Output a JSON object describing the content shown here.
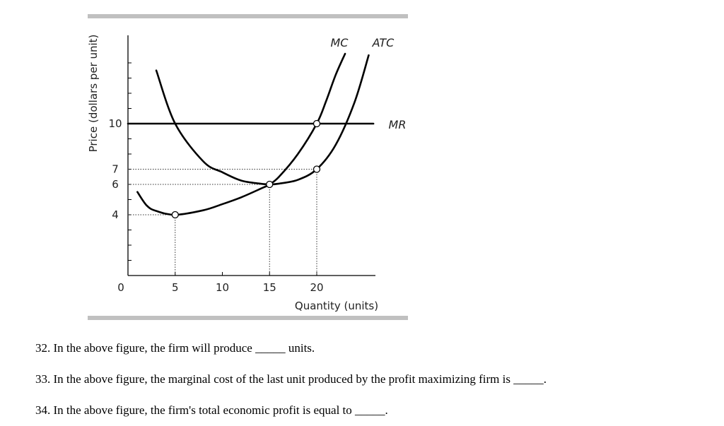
{
  "chart_data": {
    "type": "line",
    "xlabel": "Quantity (units)",
    "ylabel": "Price (dollars per unit)",
    "xlim": [
      0,
      26
    ],
    "ylim": [
      0,
      15
    ],
    "x_ticks": [
      0,
      5,
      10,
      15,
      20
    ],
    "y_ticks": [
      4,
      6,
      7,
      10
    ],
    "series": [
      {
        "name": "MC",
        "x": [
          1,
          2,
          3,
          5,
          8,
          10,
          12,
          14,
          15,
          16,
          18,
          20,
          21,
          22,
          23
        ],
        "y": [
          5.5,
          4.6,
          4.25,
          4.0,
          4.3,
          4.7,
          5.15,
          5.7,
          6.0,
          6.5,
          8.0,
          10.0,
          11.5,
          13.2,
          14.6
        ]
      },
      {
        "name": "ATC",
        "x": [
          3,
          5,
          8,
          10,
          12,
          14,
          15,
          16,
          18,
          20,
          22,
          24,
          25.5
        ],
        "y": [
          13.5,
          10.0,
          7.5,
          6.8,
          6.25,
          6.05,
          6.0,
          6.05,
          6.3,
          7.0,
          8.6,
          11.4,
          14.5
        ]
      },
      {
        "name": "MR",
        "x": [
          0,
          26
        ],
        "y": [
          10,
          10
        ]
      }
    ],
    "points": [
      {
        "x": 5,
        "y": 4
      },
      {
        "x": 15,
        "y": 6
      },
      {
        "x": 20,
        "y": 7
      },
      {
        "x": 20,
        "y": 10
      }
    ],
    "guides": [
      {
        "x": 5,
        "y": 4
      },
      {
        "x": 15,
        "y": 6
      },
      {
        "x": 20,
        "y": 7
      }
    ],
    "minor_y_ticks": [
      1,
      2,
      3,
      5,
      8,
      9,
      11,
      12,
      13,
      14
    ],
    "colors": {
      "frame_bar": "#c0c0c0",
      "curve": "#000000",
      "axis": "#000000"
    }
  },
  "questions": [
    {
      "text": "32. In the above figure, the firm will produce _____ units."
    },
    {
      "text": "33. In the above figure, the marginal cost of the last unit produced by the profit maximizing firm is _____."
    },
    {
      "text": "34. In the above figure, the firm's total economic profit is equal to _____."
    }
  ]
}
